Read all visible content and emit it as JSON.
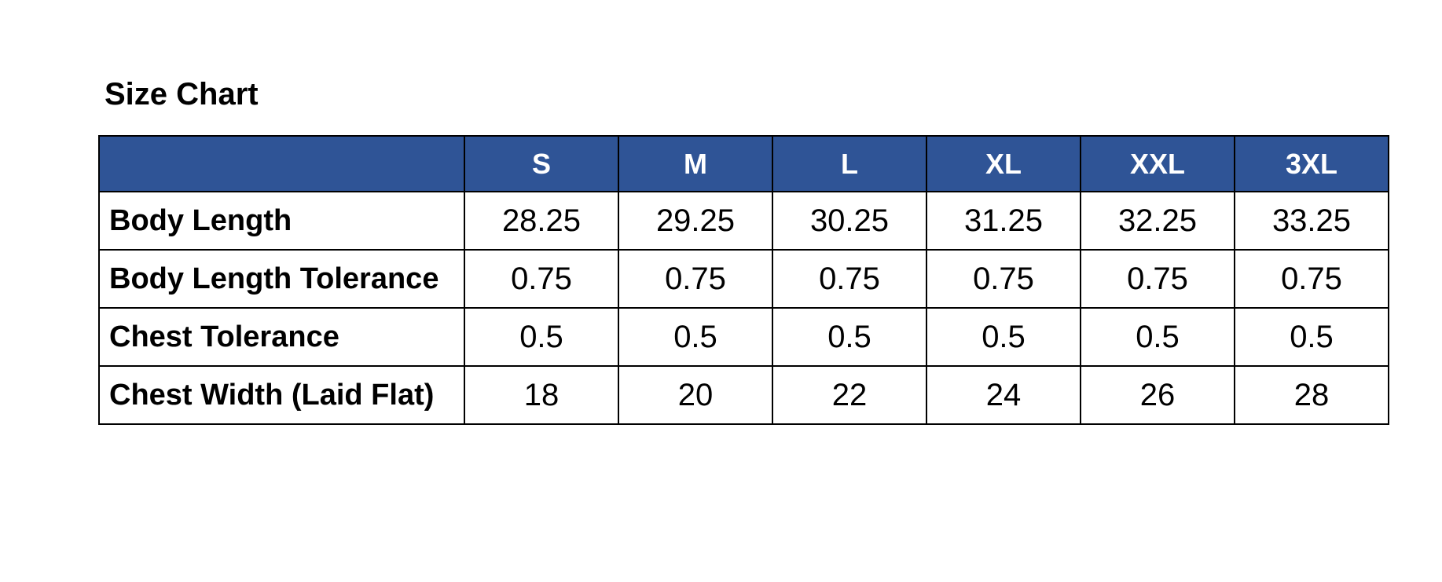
{
  "page": {
    "title": "Size Chart",
    "background_color": "#ffffff"
  },
  "size_chart_table": {
    "corner_label": "",
    "columns": [
      "S",
      "M",
      "L",
      "XL",
      "XXL",
      "3XL"
    ],
    "rows": [
      {
        "label": "Body Length",
        "values": [
          "28.25",
          "29.25",
          "30.25",
          "31.25",
          "32.25",
          "33.25"
        ]
      },
      {
        "label": "Body Length Tolerance",
        "values": [
          "0.75",
          "0.75",
          "0.75",
          "0.75",
          "0.75",
          "0.75"
        ]
      },
      {
        "label": "Chest Tolerance",
        "values": [
          "0.5",
          "0.5",
          "0.5",
          "0.5",
          "0.5",
          "0.5"
        ]
      },
      {
        "label": "Chest Width (Laid Flat)",
        "values": [
          "18",
          "20",
          "22",
          "24",
          "26",
          "28"
        ]
      }
    ],
    "colors": {
      "header_background": "#2F5496",
      "header_text": "#FFFFFF",
      "border": "#000000",
      "body_text": "#000000"
    }
  }
}
